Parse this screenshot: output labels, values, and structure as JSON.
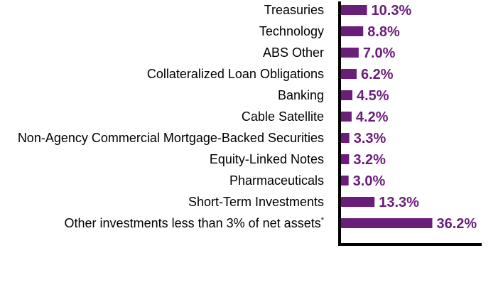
{
  "chart_data": {
    "type": "bar",
    "orientation": "horizontal",
    "categories": [
      "Treasuries",
      "Technology",
      "ABS Other",
      "Collateralized Loan Obligations",
      "Banking",
      "Cable Satellite",
      "Non-Agency Commercial Mortgage-Backed Securities",
      "Equity-Linked Notes",
      "Pharmaceuticals",
      "Short-Term Investments",
      "Other investments less than 3% of net assets"
    ],
    "values": [
      10.3,
      8.8,
      7.0,
      6.2,
      4.5,
      4.2,
      3.3,
      3.2,
      3.0,
      13.3,
      36.2
    ],
    "value_labels": [
      "10.3%",
      "8.8%",
      "7.0%",
      "6.2%",
      "4.5%",
      "4.2%",
      "3.3%",
      "3.2%",
      "3.0%",
      "13.3%",
      "36.2%"
    ],
    "footnote_marks": [
      "",
      "",
      "",
      "",
      "",
      "",
      "",
      "",
      "",
      "",
      "*"
    ],
    "unit": "%",
    "xlim": [
      0,
      36.2
    ],
    "grid": false,
    "legend": "none",
    "bar_color": "#6b1d7a",
    "label_color": "#6b1d7a"
  }
}
